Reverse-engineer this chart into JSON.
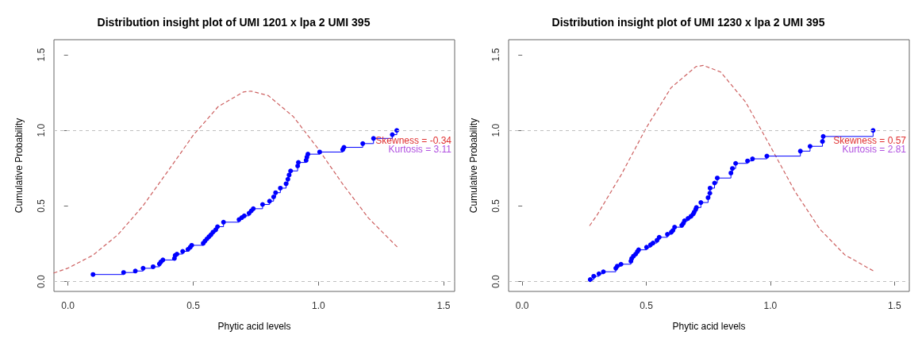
{
  "chart_data": [
    {
      "type": "step",
      "title": "Distribution insight plot of UMI 1201 x lpa 2 UMI 395",
      "xlabel": "Phytic acid levels",
      "ylabel": "Cumulative Probability",
      "xlim": [
        -0.056,
        1.544
      ],
      "ylim": [
        -0.065,
        1.6
      ],
      "xticks": [
        {
          "value": 0,
          "label": "0.0"
        },
        {
          "value": 0.5,
          "label": "0.5"
        },
        {
          "value": 1,
          "label": "1.0"
        },
        {
          "value": 1.5,
          "label": "1.5"
        }
      ],
      "yticks": [
        {
          "value": 0,
          "label": "0.0"
        },
        {
          "value": 0.5,
          "label": "0.5"
        },
        {
          "value": 1,
          "label": "1.0"
        },
        {
          "value": 1.5,
          "label": "1.5"
        }
      ],
      "grid": false,
      "ref_lines": [
        {
          "axis": "y",
          "value": 0,
          "color": "#c0c0c0",
          "line_style": "dashed"
        },
        {
          "axis": "y",
          "value": 1,
          "color": "#c0c0c0",
          "line_style": "dashed"
        }
      ],
      "annotations": [
        "Skewness = -0.34",
        "Kurtosis = 3.11"
      ],
      "series": [
        {
          "color": "#0000ff",
          "marker": "circle",
          "line_style": "solid",
          "x": [
            0.1,
            0.222,
            0.269,
            0.3,
            0.34,
            0.365,
            0.371,
            0.379,
            0.425,
            0.428,
            0.435,
            0.458,
            0.479,
            0.488,
            0.494,
            0.54,
            0.547,
            0.555,
            0.563,
            0.571,
            0.579,
            0.59,
            0.597,
            0.621,
            0.683,
            0.694,
            0.704,
            0.723,
            0.732,
            0.74,
            0.777,
            0.805,
            0.821,
            0.829,
            0.848,
            0.871,
            0.878,
            0.883,
            0.889,
            0.917,
            0.92,
            0.951,
            0.954,
            0.958,
            1.005,
            1.097,
            1.102,
            1.177,
            1.22,
            1.295,
            1.313
          ],
          "values": [
            0.047,
            0.06,
            0.07,
            0.088,
            0.098,
            0.117,
            0.13,
            0.143,
            0.153,
            0.173,
            0.182,
            0.2,
            0.213,
            0.227,
            0.24,
            0.253,
            0.268,
            0.283,
            0.297,
            0.31,
            0.327,
            0.343,
            0.363,
            0.393,
            0.41,
            0.423,
            0.435,
            0.452,
            0.468,
            0.482,
            0.51,
            0.532,
            0.56,
            0.588,
            0.618,
            0.647,
            0.677,
            0.705,
            0.732,
            0.765,
            0.788,
            0.802,
            0.823,
            0.843,
            0.857,
            0.873,
            0.888,
            0.913,
            0.947,
            0.972,
            1.0
          ]
        },
        {
          "type": "line",
          "color": "#cd6060",
          "marker": "none",
          "line_style": "dashed",
          "x": [
            -0.056,
            0,
            0.1,
            0.2,
            0.3,
            0.4,
            0.5,
            0.6,
            0.7,
            0.73,
            0.8,
            0.9,
            1.0,
            1.1,
            1.2,
            1.32
          ],
          "values": [
            0.057,
            0.089,
            0.175,
            0.311,
            0.502,
            0.733,
            0.968,
            1.158,
            1.254,
            1.26,
            1.23,
            1.091,
            0.876,
            0.638,
            0.42,
            0.22
          ]
        }
      ]
    },
    {
      "type": "step",
      "title": "Distribution insight plot of UMI 1230 x lpa 2 UMI 395",
      "xlabel": "Phytic acid levels",
      "ylabel": "Cumulative Probability",
      "xlim": [
        -0.055,
        1.56
      ],
      "ylim": [
        -0.065,
        1.6
      ],
      "xticks": [
        {
          "value": 0,
          "label": "0.0"
        },
        {
          "value": 0.5,
          "label": "0.5"
        },
        {
          "value": 1,
          "label": "1.0"
        },
        {
          "value": 1.5,
          "label": "1.5"
        }
      ],
      "yticks": [
        {
          "value": 0,
          "label": "0.0"
        },
        {
          "value": 0.5,
          "label": "0.5"
        },
        {
          "value": 1,
          "label": "1.0"
        },
        {
          "value": 1.5,
          "label": "1.5"
        }
      ],
      "grid": false,
      "ref_lines": [
        {
          "axis": "y",
          "value": 0,
          "color": "#c0c0c0",
          "line_style": "dashed"
        },
        {
          "axis": "y",
          "value": 1,
          "color": "#c0c0c0",
          "line_style": "dashed"
        }
      ],
      "annotations": [
        "Skewness = 0.57",
        "Kurtosis = 2.81"
      ],
      "series": [
        {
          "color": "#0000ff",
          "marker": "circle",
          "line_style": "solid",
          "x": [
            0.274,
            0.288,
            0.309,
            0.327,
            0.377,
            0.383,
            0.398,
            0.438,
            0.441,
            0.448,
            0.457,
            0.464,
            0.469,
            0.501,
            0.517,
            0.527,
            0.543,
            0.552,
            0.585,
            0.601,
            0.607,
            0.614,
            0.643,
            0.649,
            0.654,
            0.668,
            0.68,
            0.689,
            0.693,
            0.699,
            0.702,
            0.72,
            0.749,
            0.756,
            0.757,
            0.775,
            0.786,
            0.841,
            0.847,
            0.86,
            0.908,
            0.928,
            0.986,
            1.121,
            1.16,
            1.21,
            1.213,
            1.414
          ],
          "values": [
            0.013,
            0.035,
            0.052,
            0.065,
            0.088,
            0.102,
            0.115,
            0.135,
            0.152,
            0.168,
            0.182,
            0.198,
            0.21,
            0.227,
            0.243,
            0.255,
            0.273,
            0.293,
            0.313,
            0.327,
            0.338,
            0.36,
            0.372,
            0.385,
            0.402,
            0.418,
            0.432,
            0.447,
            0.46,
            0.477,
            0.49,
            0.523,
            0.555,
            0.585,
            0.618,
            0.652,
            0.685,
            0.718,
            0.748,
            0.782,
            0.798,
            0.812,
            0.83,
            0.863,
            0.895,
            0.927,
            0.96,
            1.0
          ]
        },
        {
          "type": "line",
          "color": "#cd6060",
          "marker": "none",
          "line_style": "dashed",
          "x": [
            0.272,
            0.3,
            0.4,
            0.5,
            0.6,
            0.7,
            0.73,
            0.8,
            0.9,
            1.0,
            1.1,
            1.2,
            1.3,
            1.418
          ],
          "values": [
            0.371,
            0.436,
            0.71,
            1.018,
            1.283,
            1.422,
            1.43,
            1.386,
            1.188,
            0.895,
            0.594,
            0.346,
            0.177,
            0.068
          ]
        }
      ]
    }
  ]
}
